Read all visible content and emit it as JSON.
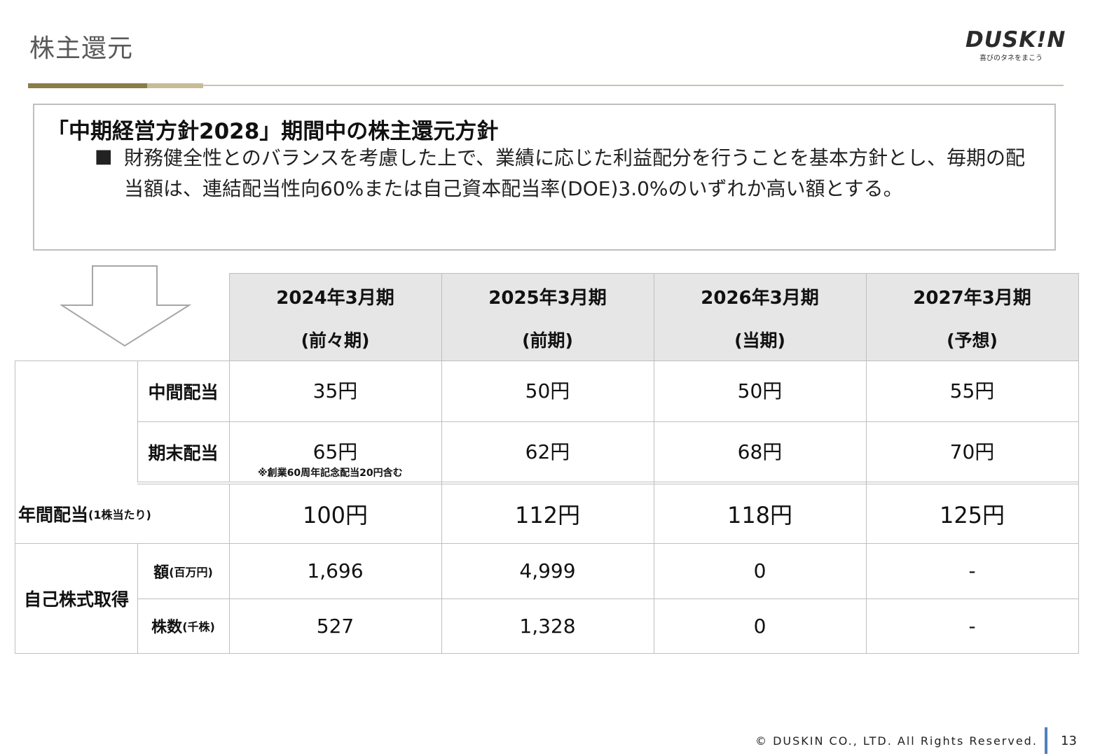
{
  "header": {
    "title": "株主還元",
    "logo_word": "DUSK!N",
    "logo_tagline": "喜びのタネをまこう"
  },
  "policy": {
    "heading": "「中期経営方針2028」期間中の株主還元方針",
    "bullet": "■",
    "body": "財務健全性とのバランスを考慮した上で、業績に応じた利益配分を行うことを基本方針とし、毎期の配当額は、連結配当性向60%または自己資本配当率(DOE)3.0%のいずれか高い額とする。"
  },
  "table": {
    "columns": [
      {
        "year": "2024年3月期",
        "sub": "(前々期)"
      },
      {
        "year": "2025年3月期",
        "sub": "(前期)"
      },
      {
        "year": "2026年3月期",
        "sub": "(当期)"
      },
      {
        "year": "2027年3月期",
        "sub": "(予想)"
      }
    ],
    "rows": {
      "interim": {
        "label": "中間配当",
        "values": [
          "35円",
          "50円",
          "50円",
          "55円"
        ]
      },
      "year_end": {
        "label": "期末配当",
        "values": [
          "65円",
          "62円",
          "68円",
          "70円"
        ],
        "note": "※創業60周年記念配当20円含む"
      },
      "annual": {
        "label": "年間配当",
        "label_sub": "(1株当たり)",
        "values": [
          "100円",
          "112円",
          "118円",
          "125円"
        ]
      },
      "buyback": {
        "label": "自己株式取得",
        "amount": {
          "label": "額",
          "label_sub": "(百万円)",
          "values": [
            "1,696",
            "4,999",
            "0",
            "-"
          ]
        },
        "shares": {
          "label": "株数",
          "label_sub": "(千株)",
          "values": [
            "527",
            "1,328",
            "0",
            "-"
          ]
        }
      }
    }
  },
  "footer": {
    "copyright": "© DUSKIN CO., LTD. All Rights Reserved.",
    "page": "13"
  }
}
